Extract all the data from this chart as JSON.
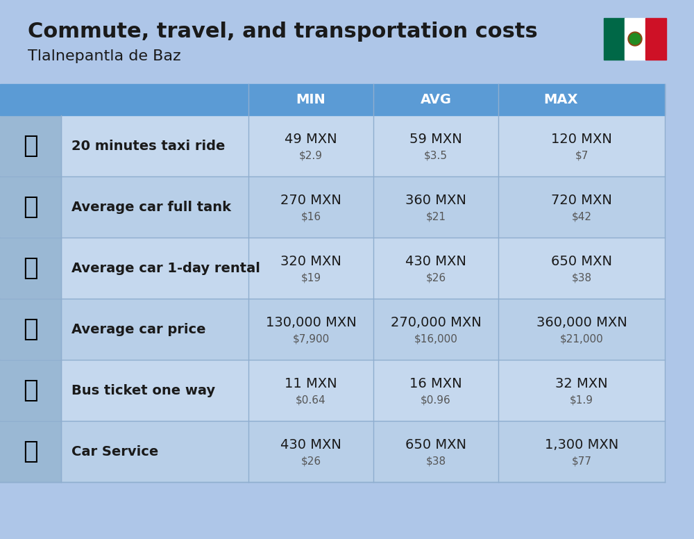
{
  "title": "Commute, travel, and transportation costs",
  "subtitle": "Tlalnepantla de Baz",
  "background_color": "#aec6e8",
  "header_bg_color": "#5b9bd5",
  "header_text_color": "#ffffff",
  "row_bg_even": "#c5d8ee",
  "row_bg_odd": "#b8cfe8",
  "col_headers": [
    "MIN",
    "AVG",
    "MAX"
  ],
  "rows": [
    {
      "label": "20 minutes taxi ride",
      "emoji": "🚖",
      "min_mxn": "49 MXN",
      "min_usd": "$2.9",
      "avg_mxn": "59 MXN",
      "avg_usd": "$3.5",
      "max_mxn": "120 MXN",
      "max_usd": "$7"
    },
    {
      "label": "Average car full tank",
      "emoji": "⛽",
      "min_mxn": "270 MXN",
      "min_usd": "$16",
      "avg_mxn": "360 MXN",
      "avg_usd": "$21",
      "max_mxn": "720 MXN",
      "max_usd": "$42"
    },
    {
      "label": "Average car 1-day rental",
      "emoji": "🚙",
      "min_mxn": "320 MXN",
      "min_usd": "$19",
      "avg_mxn": "430 MXN",
      "avg_usd": "$26",
      "max_mxn": "650 MXN",
      "max_usd": "$38"
    },
    {
      "label": "Average car price",
      "emoji": "🚗",
      "min_mxn": "130,000 MXN",
      "min_usd": "$7,900",
      "avg_mxn": "270,000 MXN",
      "avg_usd": "$16,000",
      "max_mxn": "360,000 MXN",
      "max_usd": "$21,000"
    },
    {
      "label": "Bus ticket one way",
      "emoji": "🚌",
      "min_mxn": "11 MXN",
      "min_usd": "$0.64",
      "avg_mxn": "16 MXN",
      "avg_usd": "$0.96",
      "max_mxn": "32 MXN",
      "max_usd": "$1.9"
    },
    {
      "label": "Car Service",
      "emoji": "🚗",
      "min_mxn": "430 MXN",
      "min_usd": "$26",
      "avg_mxn": "650 MXN",
      "avg_usd": "$38",
      "max_mxn": "1,300 MXN",
      "max_usd": "$77"
    }
  ],
  "icon_emojis": [
    "🚕",
    "⛽️",
    "🚙",
    "🚗",
    "🚌",
    "🔧"
  ],
  "title_fontsize": 22,
  "subtitle_fontsize": 16,
  "header_fontsize": 14,
  "label_fontsize": 14,
  "value_fontsize": 14,
  "usd_fontsize": 11
}
